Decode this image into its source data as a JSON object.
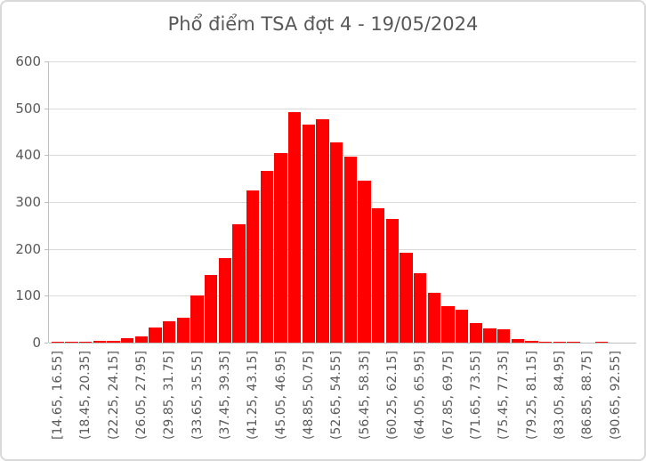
{
  "chart_data": {
    "type": "bar",
    "title": "Phổ điểm TSA đợt 4 - 19/05/2024",
    "xlabel": "",
    "ylabel": "",
    "ylim": [
      0,
      600
    ],
    "y_ticks": [
      0,
      100,
      200,
      300,
      400,
      500,
      600
    ],
    "grid": "horizontal",
    "legend_position": "none",
    "bin_width": 1.9,
    "x_tick_label_every_n_bins": 2,
    "x_tick_labels": [
      "[14.65, 16.55]",
      "(18.45, 20.35]",
      "(22.25, 24.15]",
      "(26.05, 27.95]",
      "(29.85, 31.75]",
      "(33.65, 35.55]",
      "(37.45, 39.35]",
      "(41.25, 43.15]",
      "(45.05, 46.95]",
      "(48.85, 50.75]",
      "(52.65, 54.55]",
      "(56.45, 58.35]",
      "(60.25, 62.15]",
      "(64.05, 65.95]",
      "(67.85, 69.75]",
      "(71.65, 73.55]",
      "(75.45, 77.35]",
      "(79.25, 81.15]",
      "(83.05, 84.95]",
      "(86.85, 88.75]",
      "(90.65, 92.55]"
    ],
    "values": [
      1,
      2,
      2,
      3,
      4,
      9,
      14,
      33,
      46,
      54,
      100,
      144,
      181,
      253,
      324,
      366,
      405,
      491,
      466,
      477,
      427,
      396,
      346,
      287,
      264,
      191,
      148,
      107,
      77,
      71,
      41,
      31,
      28,
      8,
      4,
      2,
      2,
      2,
      0,
      2,
      0,
      0
    ],
    "bar_color": "#FF0000",
    "gridline_color": "#D9D9D9",
    "axis_color": "#BFBFBF",
    "text_color": "#595959",
    "frame_border_color": "#D9D9D9"
  }
}
